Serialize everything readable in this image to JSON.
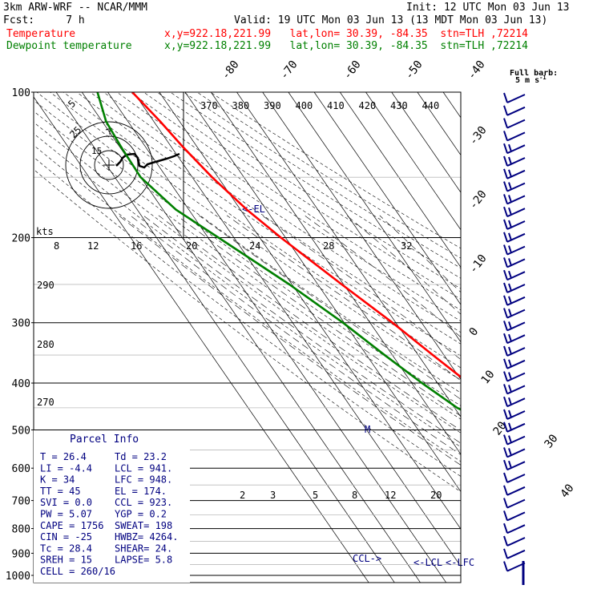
{
  "header": {
    "model": "3km ARW-WRF -- NCAR/MMM",
    "init": "Init: 12 UTC Mon 03 Jun 13",
    "fcst": "Fcst:     7 h",
    "valid": "Valid: 19 UTC Mon 03 Jun 13 (13 MDT Mon 03 Jun 13)",
    "temp_label": "Temperature",
    "temp_loc": "x,y=922.18,221.99   lat,lon= 30.39, -84.35  stn=TLH ,72214",
    "dew_label": "Dewpoint temperature",
    "dew_loc": "x,y=922.18,221.99   lat,lon= 30.39, -84.35  stn=TLH ,72214"
  },
  "barb_legend": {
    "line1": "Full barb:",
    "line2": "5 m s",
    "sup": "-1"
  },
  "parcel_info": {
    "title": "Parcel Info",
    "rows": [
      [
        "T  =    26.4",
        "Td =  23.2"
      ],
      [
        "LI =    -4.4",
        "LCL =  941."
      ],
      [
        "K  =      34",
        "LFC =  948."
      ],
      [
        "TT =      45",
        "EL  =  174."
      ],
      [
        "SVI =    0.0",
        "CCL =  923."
      ],
      [
        "PW =    5.07",
        "YGP =   0.2"
      ],
      [
        "CAPE =  1756",
        "SWEAT=  198"
      ],
      [
        "CIN =    -25",
        "HWBZ= 4264."
      ],
      [
        "Tc =    28.4",
        "SHEAR=  24."
      ],
      [
        "SREH =    15",
        "LAPSE=  5.8"
      ],
      [
        "CELL = 260/16",
        ""
      ]
    ]
  },
  "chart_data": {
    "type": "line",
    "title": "",
    "xlabel": "",
    "ylabel": "",
    "yscale": "log",
    "ylim": [
      1000,
      100
    ],
    "pressure_ticks": [
      "100",
      "200",
      "300",
      "400",
      "500",
      "600",
      "700",
      "800",
      "900",
      "1000"
    ],
    "isotherm_labels": [
      "-80",
      "-70",
      "-60",
      "-50",
      "-40",
      "-30",
      "-20",
      "-10",
      "0",
      "10",
      "20",
      "30",
      "40"
    ],
    "theta_e_labels": [
      "370",
      "380",
      "390",
      "400",
      "410",
      "420",
      "430",
      "440"
    ],
    "dry_adiabat_labels": [
      "290",
      "280",
      "270"
    ],
    "mixing_ratio_labels": [
      "2",
      "3",
      "5",
      "8",
      "12",
      "20"
    ],
    "hodograph": {
      "speed_unit": "kts",
      "ring_labels": [
        "5",
        "15",
        "25"
      ],
      "axis_labels": [
        "8",
        "12",
        "16",
        "20",
        "24",
        "28",
        "32"
      ]
    },
    "level_markers": {
      "el": "<-EL",
      "ccl": "CCL->",
      "lcl": "<-LCL",
      "lfc": "<-LFC",
      "m": "M"
    },
    "series": [
      {
        "name": "Temperature",
        "color": "#ff0000",
        "points": [
          {
            "p": 1000,
            "t": 26.4
          },
          {
            "p": 980,
            "t": 24.6
          },
          {
            "p": 950,
            "t": 22.6
          },
          {
            "p": 925,
            "t": 21.0
          },
          {
            "p": 900,
            "t": 19.3
          },
          {
            "p": 850,
            "t": 16.0
          },
          {
            "p": 800,
            "t": 12.2
          },
          {
            "p": 750,
            "t": 8.8
          },
          {
            "p": 700,
            "t": 6.0
          },
          {
            "p": 650,
            "t": 2.2
          },
          {
            "p": 600,
            "t": -1.3
          },
          {
            "p": 550,
            "t": -4.8
          },
          {
            "p": 500,
            "t": -8.2
          },
          {
            "p": 450,
            "t": -12.8
          },
          {
            "p": 400,
            "t": -18.0
          },
          {
            "p": 350,
            "t": -24.3
          },
          {
            "p": 300,
            "t": -31.3
          },
          {
            "p": 250,
            "t": -40.7
          },
          {
            "p": 200,
            "t": -51.8
          },
          {
            "p": 175,
            "t": -57.5
          },
          {
            "p": 150,
            "t": -62.3
          },
          {
            "p": 130,
            "t": -65.5
          },
          {
            "p": 115,
            "t": -67.5
          },
          {
            "p": 100,
            "t": -70.5
          }
        ]
      },
      {
        "name": "Dewpoint temperature",
        "color": "#008000",
        "points": [
          {
            "p": 1000,
            "t": 23.2
          },
          {
            "p": 980,
            "t": 22.0
          },
          {
            "p": 950,
            "t": 20.8
          },
          {
            "p": 925,
            "t": 20.5
          },
          {
            "p": 900,
            "t": 18.8
          },
          {
            "p": 850,
            "t": 12.0
          },
          {
            "p": 800,
            "t": 10.8
          },
          {
            "p": 750,
            "t": 7.0
          },
          {
            "p": 700,
            "t": 3.0
          },
          {
            "p": 650,
            "t": -3.0
          },
          {
            "p": 600,
            "t": -9.0
          },
          {
            "p": 550,
            "t": -13.0
          },
          {
            "p": 500,
            "t": -17.5
          },
          {
            "p": 450,
            "t": -29.0
          },
          {
            "p": 400,
            "t": -36.0
          },
          {
            "p": 350,
            "t": -43.0
          },
          {
            "p": 300,
            "t": -50.5
          },
          {
            "p": 250,
            "t": -61.0
          },
          {
            "p": 200,
            "t": -76.0
          },
          {
            "p": 175,
            "t": -85.0
          },
          {
            "p": 150,
            "t": -90.0
          },
          {
            "p": 130,
            "t": -89.5
          },
          {
            "p": 115,
            "t": -88.5
          },
          {
            "p": 100,
            "t": -84.0
          }
        ]
      }
    ]
  }
}
